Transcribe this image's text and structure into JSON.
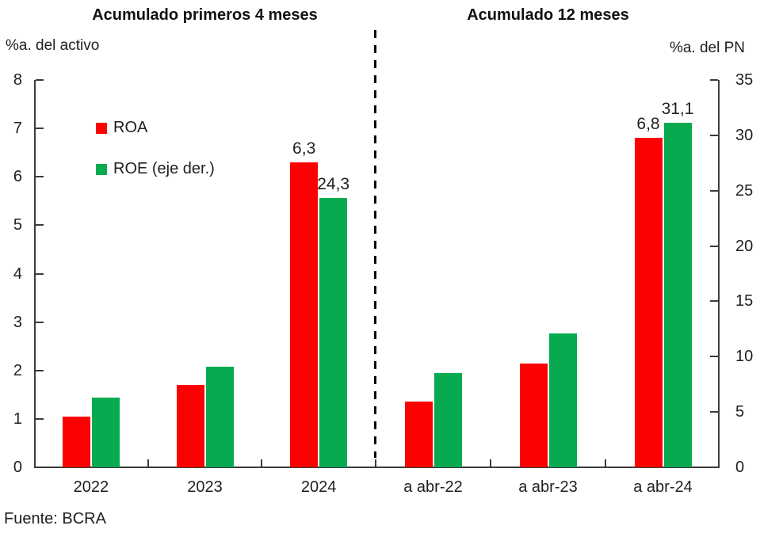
{
  "chart_data": {
    "type": "bar",
    "source": "Fuente: BCRA",
    "colors": {
      "roa": "#fc0101",
      "roe": "#07aa4f"
    },
    "legend": [
      {
        "name": "ROA",
        "color": "roa"
      },
      {
        "name": "ROE (eje der.)",
        "color": "roe"
      }
    ],
    "left_axis": {
      "label": "%a. del activo",
      "min": 0,
      "max": 8,
      "step": 1
    },
    "right_axis": {
      "label": "%a. del PN",
      "min": 0,
      "max": 35,
      "step": 5
    },
    "grid": false,
    "panels": [
      {
        "title": "Acumulado primeros 4 meses",
        "categories": [
          "2022",
          "2023",
          "2024"
        ],
        "series": [
          {
            "name": "ROA",
            "axis": "left",
            "color": "roa",
            "values": [
              1.05,
              1.7,
              6.3
            ],
            "value_labels": [
              null,
              null,
              "6,3"
            ]
          },
          {
            "name": "ROE (eje der.)",
            "axis": "right",
            "color": "roe",
            "values": [
              6.3,
              9.1,
              24.3
            ],
            "value_labels": [
              null,
              null,
              "24,3"
            ]
          }
        ]
      },
      {
        "title": "Acumulado 12 meses",
        "categories": [
          "a abr-22",
          "a abr-23",
          "a abr-24"
        ],
        "series": [
          {
            "name": "ROA",
            "axis": "left",
            "color": "roa",
            "values": [
              1.35,
              2.15,
              6.8
            ],
            "value_labels": [
              null,
              null,
              "6,8"
            ]
          },
          {
            "name": "ROE (eje der.)",
            "axis": "right",
            "color": "roe",
            "values": [
              8.5,
              12.1,
              31.1
            ],
            "value_labels": [
              null,
              null,
              "31,1"
            ]
          }
        ]
      }
    ]
  }
}
